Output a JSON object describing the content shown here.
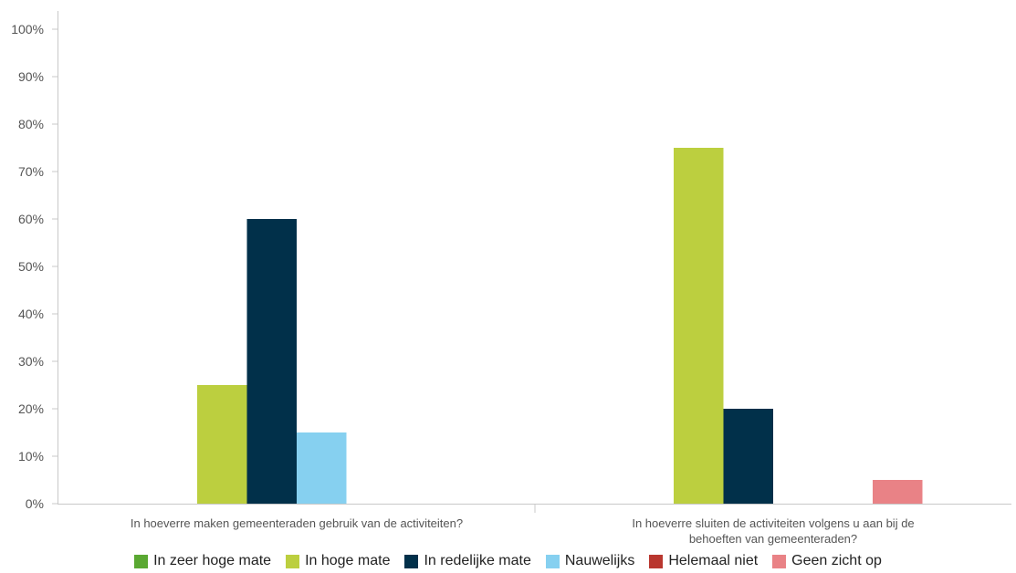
{
  "chart_data": {
    "type": "bar",
    "categories": [
      [
        "In hoeverre maken gemeenteraden gebruik van de activiteiten?"
      ],
      [
        "In hoeverre sluiten de activiteiten volgens u aan bij de",
        "behoeften van gemeenteraden?"
      ]
    ],
    "series": [
      {
        "name": "In zeer hoge mate",
        "color": "#5aa832",
        "values": [
          0,
          0
        ]
      },
      {
        "name": "In hoge mate",
        "color": "#bccf3f",
        "values": [
          25,
          75
        ]
      },
      {
        "name": "In redelijke mate",
        "color": "#01304a",
        "values": [
          60,
          20
        ]
      },
      {
        "name": "Nauwelijks",
        "color": "#86d0f0",
        "values": [
          15,
          0
        ]
      },
      {
        "name": "Helemaal niet",
        "color": "#b9372f",
        "values": [
          0,
          0
        ]
      },
      {
        "name": "Geen zicht op",
        "color": "#e98286",
        "values": [
          0,
          5
        ]
      }
    ],
    "yticks": [
      "0%",
      "10%",
      "20%",
      "30%",
      "40%",
      "50%",
      "60%",
      "70%",
      "80%",
      "90%",
      "100%"
    ],
    "ylim": [
      0,
      100
    ],
    "grid": false,
    "legend_position": "bottom"
  }
}
